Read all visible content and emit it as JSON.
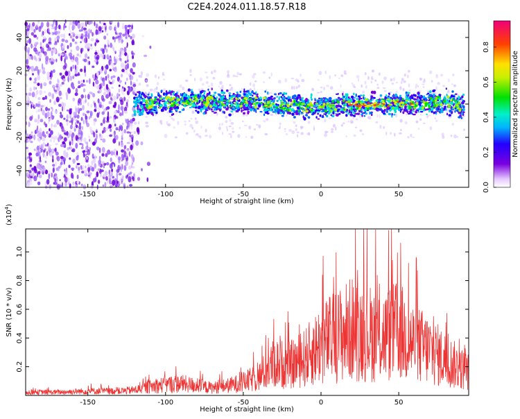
{
  "title": "C2E4.2024.011.18.57.R18",
  "chart_data": [
    {
      "type": "heatmap",
      "title": "C2E4.2024.011.18.57.R18",
      "xlabel": "Height of straight line (km)",
      "ylabel": "Frequency (Hz)",
      "xlim": [
        -190,
        95
      ],
      "ylim": [
        -50,
        50
      ],
      "xticks": [
        -150,
        -100,
        -50,
        0,
        50
      ],
      "yticks": [
        -40,
        -20,
        0,
        20,
        40
      ],
      "colorbar": {
        "label": "Normalized spectral amplitude",
        "range": [
          0.0,
          0.95
        ],
        "ticks": [
          "0.0",
          "0.2",
          "0.4",
          "0.6",
          "0.8"
        ]
      },
      "series": [
        {
          "x": [
            -120,
            -100,
            -80,
            -60,
            -40,
            -20,
            0,
            20,
            40,
            60,
            80,
            92
          ],
          "values": [
            0,
            1,
            2,
            1,
            1,
            -1,
            -2,
            0,
            0,
            0,
            2,
            -2
          ]
        }
      ]
    },
    {
      "type": "line",
      "xlabel": "Height of straight line (km)",
      "ylabel": "SNR (10 * v/v)",
      "yscale_label": "(x10",
      "yscale_exp": "4",
      "yscale_close": ")",
      "xlim": [
        -190,
        95
      ],
      "ylim": [
        0,
        1.16
      ],
      "xticks": [
        -150,
        -100,
        -50,
        0,
        50
      ],
      "yticks": [
        "0.2",
        "0.4",
        "0.6",
        "0.8",
        "1.0"
      ],
      "color": "#ee3333",
      "series": [
        {
          "x": [
            -190,
            -170,
            -150,
            -130,
            -120,
            -110,
            -100,
            -90,
            -80,
            -70,
            -60,
            -50,
            -40,
            -30,
            -20,
            -10,
            0,
            10,
            20,
            30,
            40,
            50,
            60,
            70,
            80,
            90,
            95
          ],
          "values": [
            0.03,
            0.03,
            0.04,
            0.04,
            0.05,
            0.08,
            0.1,
            0.11,
            0.09,
            0.07,
            0.09,
            0.12,
            0.17,
            0.3,
            0.28,
            0.35,
            0.48,
            0.55,
            0.62,
            0.58,
            0.55,
            0.6,
            0.48,
            0.42,
            0.33,
            0.25,
            0.22
          ]
        }
      ]
    }
  ]
}
